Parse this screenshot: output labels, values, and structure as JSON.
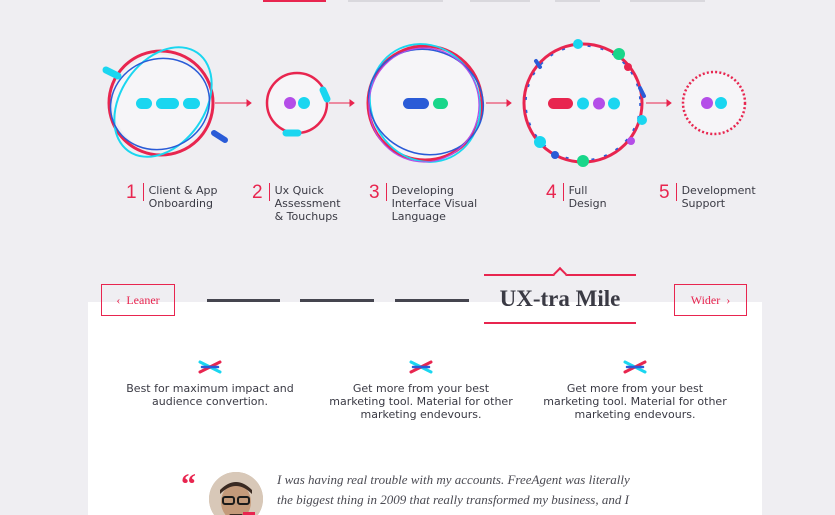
{
  "colors": {
    "accent": "#e8254f",
    "cyan": "#1ad6f0",
    "purple": "#b44de8",
    "blue": "#2a5bd7",
    "green": "#19d68a"
  },
  "steps": [
    {
      "number": "1",
      "label_line1": "Client & App",
      "label_line2": "Onboarding",
      "label_line3": ""
    },
    {
      "number": "2",
      "label_line1": "Ux Quick",
      "label_line2": "Assessment",
      "label_line3": "& Touchups"
    },
    {
      "number": "3",
      "label_line1": "Developing",
      "label_line2": "Interface Visual",
      "label_line3": "Language"
    },
    {
      "number": "4",
      "label_line1": "Full",
      "label_line2": "Design",
      "label_line3": ""
    },
    {
      "number": "5",
      "label_line1": "Development",
      "label_line2": "Support",
      "label_line3": ""
    }
  ],
  "tiers": {
    "prev_label": "Leaner",
    "next_label": "Wider",
    "active_title": "UX-tra Mile"
  },
  "features": [
    {
      "icon": "cross-logo-icon",
      "line1": "Best for maximum impact and",
      "line2": "audience convertion.",
      "line3": ""
    },
    {
      "icon": "cross-logo-icon",
      "line1": "Get more from your best",
      "line2": "marketing tool. Material for other",
      "line3": "marketing endevours."
    },
    {
      "icon": "cross-logo-icon",
      "line1": "Get more from your best",
      "line2": "marketing tool. Material for other",
      "line3": "marketing endevours."
    }
  ],
  "testimonial": {
    "quote_mark": "“",
    "line1": "I was having real trouble with my accounts. FreeAgent was literally",
    "line2": "the biggest thing in 2009 that really transformed my business, and I"
  }
}
